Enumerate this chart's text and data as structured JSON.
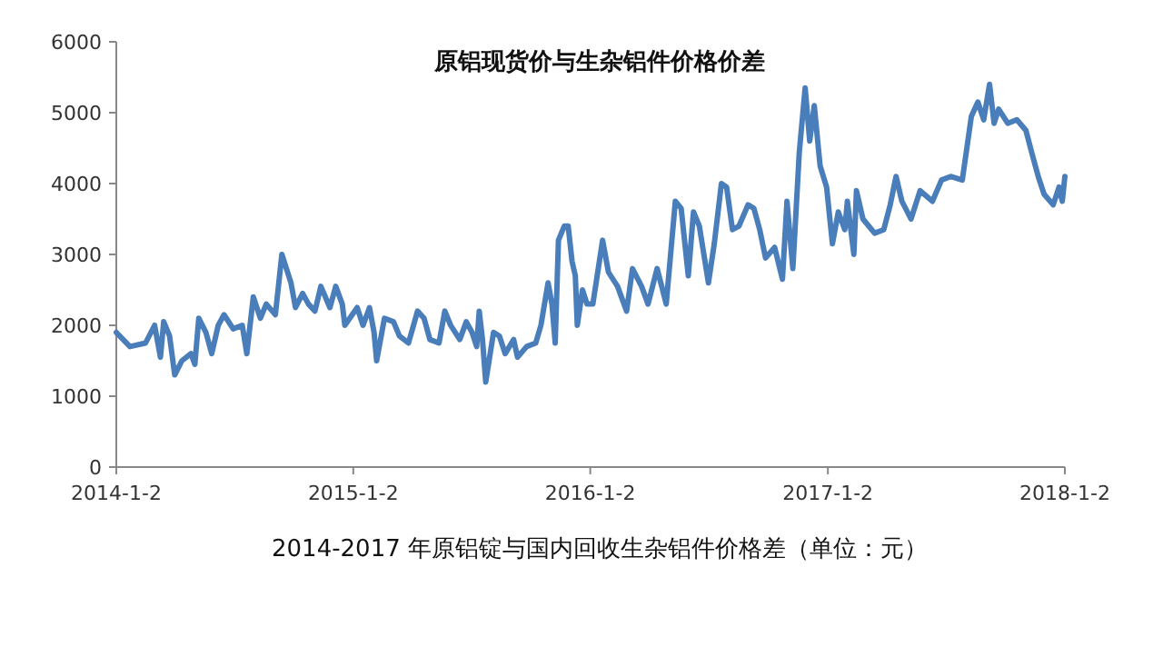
{
  "chart_data": {
    "type": "line",
    "title": "原铝现货价与生杂铝件价格价差",
    "xlabel": "2014-2017 年原铝锭与国内回收生杂铝件价格差（单位：元）",
    "xlim": [
      "2014-01-02",
      "2018-01-02"
    ],
    "xticks": [
      {
        "value": "2014-01-02",
        "label": "2014-1-2"
      },
      {
        "value": "2015-01-02",
        "label": "2015-1-2"
      },
      {
        "value": "2016-01-02",
        "label": "2016-1-2"
      },
      {
        "value": "2017-01-02",
        "label": "2017-1-2"
      },
      {
        "value": "2018-01-02",
        "label": "2018-1-2"
      }
    ],
    "ylim": [
      0,
      6000
    ],
    "yticks": [
      0,
      1000,
      2000,
      3000,
      4000,
      5000,
      6000
    ],
    "grid": false,
    "marker": "none",
    "line_style": "solid",
    "x": [
      "2014-01-02",
      "2014-01-23",
      "2014-02-16",
      "2014-03-02",
      "2014-03-11",
      "2014-03-16",
      "2014-03-25",
      "2014-04-02",
      "2014-04-13",
      "2014-04-27",
      "2014-05-03",
      "2014-05-09",
      "2014-05-20",
      "2014-05-29",
      "2014-06-08",
      "2014-06-17",
      "2014-07-01",
      "2014-07-15",
      "2014-07-22",
      "2014-08-01",
      "2014-08-12",
      "2014-08-21",
      "2014-09-04",
      "2014-09-14",
      "2014-09-28",
      "2014-10-05",
      "2014-10-16",
      "2014-10-25",
      "2014-11-04",
      "2014-11-13",
      "2014-11-27",
      "2014-12-06",
      "2014-12-16",
      "2014-12-20",
      "2015-01-08",
      "2015-01-17",
      "2015-01-27",
      "2015-02-03",
      "2015-02-07",
      "2015-02-19",
      "2015-03-05",
      "2015-03-14",
      "2015-03-28",
      "2015-04-11",
      "2015-04-21",
      "2015-04-30",
      "2015-05-14",
      "2015-05-23",
      "2015-06-01",
      "2015-06-15",
      "2015-06-25",
      "2015-07-04",
      "2015-07-11",
      "2015-07-15",
      "2015-07-20",
      "2015-07-25",
      "2015-08-06",
      "2015-08-15",
      "2015-08-24",
      "2015-09-06",
      "2015-09-12",
      "2015-09-26",
      "2015-10-10",
      "2015-10-18",
      "2015-10-29",
      "2015-11-04",
      "2015-11-09",
      "2015-11-14",
      "2015-11-23",
      "2015-11-29",
      "2015-12-05",
      "2015-12-10",
      "2015-12-13",
      "2015-12-21",
      "2015-12-28",
      "2016-01-06",
      "2016-01-16",
      "2016-01-21",
      "2016-01-30",
      "2016-02-13",
      "2016-02-27",
      "2016-03-07",
      "2016-03-21",
      "2016-03-31",
      "2016-04-14",
      "2016-04-28",
      "2016-05-12",
      "2016-05-21",
      "2016-06-01",
      "2016-06-09",
      "2016-06-18",
      "2016-07-02",
      "2016-07-11",
      "2016-07-22",
      "2016-07-30",
      "2016-08-08",
      "2016-08-18",
      "2016-09-01",
      "2016-09-10",
      "2016-09-19",
      "2016-09-28",
      "2016-10-12",
      "2016-10-24",
      "2016-10-31",
      "2016-11-09",
      "2016-11-19",
      "2016-11-28",
      "2016-12-05",
      "2016-12-12",
      "2016-12-21",
      "2016-12-31",
      "2017-01-09",
      "2017-01-18",
      "2017-01-28",
      "2017-02-01",
      "2017-02-11",
      "2017-02-15",
      "2017-02-25",
      "2017-03-15",
      "2017-03-29",
      "2017-04-08",
      "2017-04-17",
      "2017-04-26",
      "2017-05-10",
      "2017-05-24",
      "2017-06-12",
      "2017-06-26",
      "2017-07-10",
      "2017-07-28",
      "2017-08-11",
      "2017-08-21",
      "2017-08-30",
      "2017-09-08",
      "2017-09-15",
      "2017-09-22",
      "2017-10-06",
      "2017-10-20",
      "2017-11-03",
      "2017-11-13",
      "2017-11-22",
      "2017-12-01",
      "2017-12-15",
      "2017-12-24",
      "2017-12-29",
      "2018-01-02"
    ],
    "series": [
      {
        "color": "#4a7ebb",
        "values": [
          1900,
          1700,
          1750,
          2000,
          1550,
          2050,
          1850,
          1300,
          1500,
          1600,
          1450,
          2100,
          1900,
          1600,
          2000,
          2150,
          1950,
          2000,
          1600,
          2400,
          2100,
          2300,
          2150,
          3000,
          2600,
          2250,
          2450,
          2300,
          2200,
          2550,
          2250,
          2550,
          2300,
          2000,
          2250,
          2000,
          2250,
          1900,
          1500,
          2100,
          2050,
          1850,
          1750,
          2200,
          2100,
          1800,
          1750,
          2200,
          2000,
          1800,
          2050,
          1900,
          1700,
          2200,
          1800,
          1200,
          1900,
          1850,
          1600,
          1800,
          1550,
          1700,
          1750,
          2000,
          2600,
          2300,
          1750,
          3200,
          3400,
          3400,
          2900,
          2700,
          2000,
          2500,
          2300,
          2300,
          2900,
          3200,
          2750,
          2550,
          2200,
          2800,
          2550,
          2300,
          2800,
          2300,
          3750,
          3650,
          2700,
          3600,
          3400,
          2600,
          3150,
          4000,
          3950,
          3350,
          3400,
          3700,
          3650,
          3350,
          2950,
          3100,
          2650,
          3750,
          2800,
          4450,
          5350,
          4600,
          5100,
          4250,
          3950,
          3150,
          3600,
          3350,
          3750,
          3000,
          3900,
          3500,
          3300,
          3350,
          3700,
          4100,
          3750,
          3500,
          3900,
          3750,
          4050,
          4100,
          4050,
          4950,
          5150,
          4900,
          5400,
          4850,
          5050,
          4850,
          4900,
          4750,
          4400,
          4100,
          3850,
          3700,
          3950,
          3750,
          4100
        ]
      }
    ]
  }
}
